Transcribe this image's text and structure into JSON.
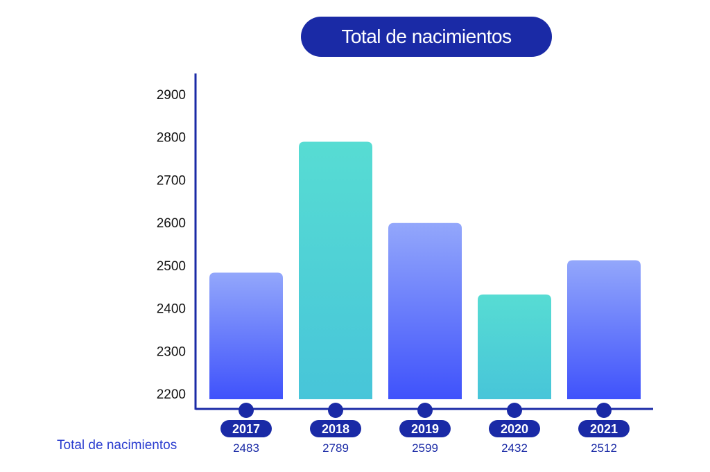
{
  "chart_data": {
    "type": "bar",
    "title": "Total de nacimientos",
    "categories": [
      "2017",
      "2018",
      "2019",
      "2020",
      "2021"
    ],
    "series": [
      {
        "name": "Total de nacimientos",
        "values": [
          2483,
          2789,
          2599,
          2432,
          2512
        ]
      }
    ],
    "value_labels": [
      "2483",
      "2789",
      "2599",
      "2432",
      "2512"
    ],
    "y_ticks": [
      "2200",
      "2300",
      "2400",
      "2500",
      "2600",
      "2700",
      "2800",
      "2900"
    ],
    "ylim": [
      2200,
      2900
    ],
    "grid": false,
    "bar_colors": [
      "blue",
      "teal",
      "blue",
      "teal",
      "blue"
    ]
  },
  "colors": {
    "navy": "#1a2aa6",
    "blue_top": "#93a7fb",
    "blue_bottom": "#3f52fb",
    "teal_top": "#57dcd3",
    "teal_bottom": "#47c5d9"
  }
}
